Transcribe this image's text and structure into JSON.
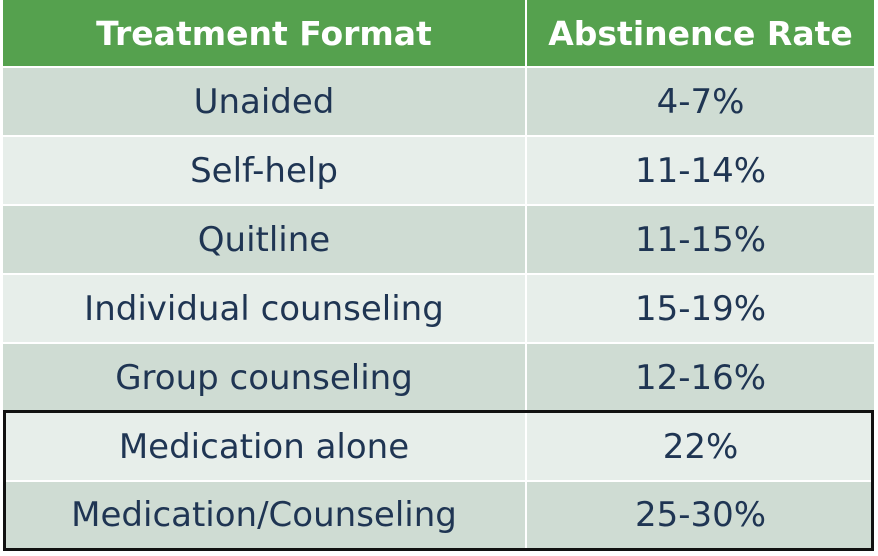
{
  "table": {
    "headers": {
      "format": "Treatment Format",
      "rate": "Abstinence Rate"
    },
    "rows": [
      {
        "format": "Unaided",
        "rate": "4-7%"
      },
      {
        "format": "Self-help",
        "rate": "11-14%"
      },
      {
        "format": "Quitline",
        "rate": "11-15%"
      },
      {
        "format": "Individual counseling",
        "rate": "15-19%"
      },
      {
        "format": "Group counseling",
        "rate": "12-16%"
      },
      {
        "format": "Medication alone",
        "rate": "22%"
      },
      {
        "format": "Medication/Counseling",
        "rate": "25-30%"
      }
    ],
    "colors": {
      "header_bg": "#55a14e",
      "header_text": "#ffffff",
      "row_dark": "#cfdcd3",
      "row_light": "#e7eeea",
      "body_text": "#1f3553",
      "highlight_border": "#111111"
    }
  }
}
